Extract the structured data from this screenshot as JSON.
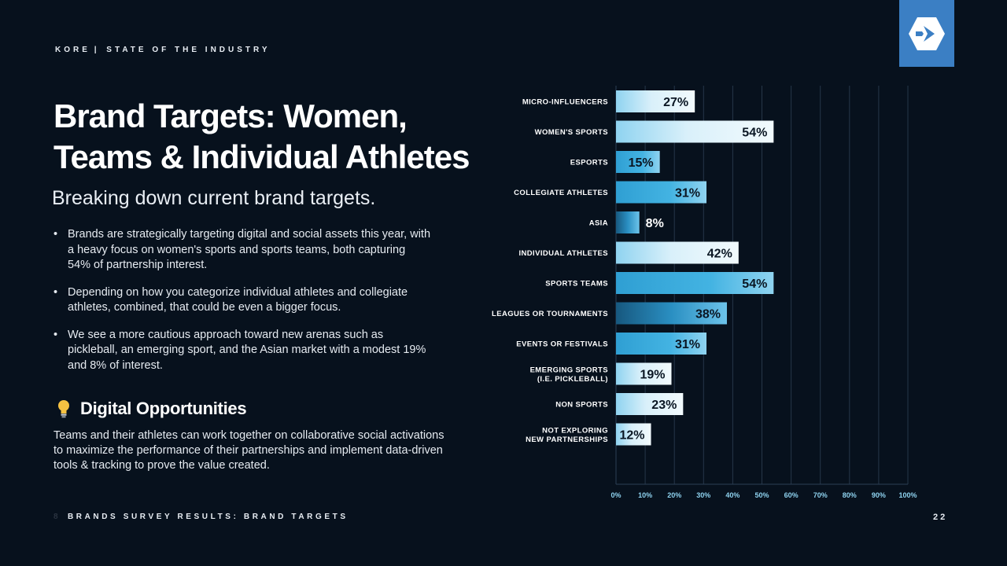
{
  "header": {
    "brand": "KORE",
    "separator": "|",
    "section": "STATE OF THE INDUSTRY"
  },
  "title": {
    "line1": "Brand Targets: Women,",
    "line2": "Teams & Individual Athletes"
  },
  "subtitle": "Breaking down current brand targets.",
  "bullets": [
    "Brands are strategically targeting digital and social assets this year, with a heavy focus on women's sports and sports teams, both capturing 54% of partnership interest.",
    "Depending on how you categorize individual athletes and collegiate athletes, combined, that could be even a bigger focus.",
    "We see a more cautious approach toward new arenas such as pickleball, an emerging sport, and the Asian market with a modest 19% and 8% of interest."
  ],
  "opportunities": {
    "heading": "Digital Opportunities",
    "icon": "lightbulb-icon",
    "body": "Teams and their athletes can work together on collaborative social activations to maximize the performance of their partnerships and implement data-driven tools & tracking to prove the value created."
  },
  "footer": {
    "marker": "8",
    "label": "BRANDS SURVEY RESULTS: BRAND TARGETS",
    "page": "22"
  },
  "logo": {
    "icon": "kore-hexagon-logo-icon"
  },
  "colors": {
    "background": "#07111d",
    "logo_bg": "#3b7fc4",
    "bar_light": "#e6f4fb",
    "bar_mid": "#33a6d8",
    "bar_dark": "#1c6a9a",
    "bulb": "#f5c242"
  },
  "chart_data": {
    "type": "bar",
    "orientation": "horizontal",
    "categories": [
      [
        "MICRO-INFLUENCERS"
      ],
      [
        "WOMEN'S SPORTS"
      ],
      [
        "ESPORTS"
      ],
      [
        "COLLEGIATE ATHLETES"
      ],
      [
        "ASIA"
      ],
      [
        "INDIVIDUAL ATHLETES"
      ],
      [
        "SPORTS TEAMS"
      ],
      [
        "LEAGUES OR TOURNAMENTS"
      ],
      [
        "EVENTS OR FESTIVALS"
      ],
      [
        "EMERGING SPORTS",
        "(I.E. PICKLEBALL)"
      ],
      [
        "NON SPORTS"
      ],
      [
        "NOT EXPLORING",
        "NEW PARTNERSHIPS"
      ]
    ],
    "values": [
      27,
      54,
      15,
      31,
      8,
      42,
      54,
      38,
      31,
      19,
      23,
      12
    ],
    "value_labels": [
      "27%",
      "54%",
      "15%",
      "31%",
      "8%",
      "42%",
      "54%",
      "38%",
      "31%",
      "19%",
      "23%",
      "12%"
    ],
    "bar_styles": [
      "light",
      "light",
      "mid",
      "mid",
      "dark",
      "light",
      "mid",
      "dark",
      "mid",
      "light",
      "light",
      "light"
    ],
    "xlim": [
      0,
      100
    ],
    "xticks": [
      "0%",
      "10%",
      "20%",
      "30%",
      "40%",
      "50%",
      "60%",
      "70%",
      "80%",
      "90%",
      "100%"
    ],
    "grid": true,
    "legend": "none"
  }
}
